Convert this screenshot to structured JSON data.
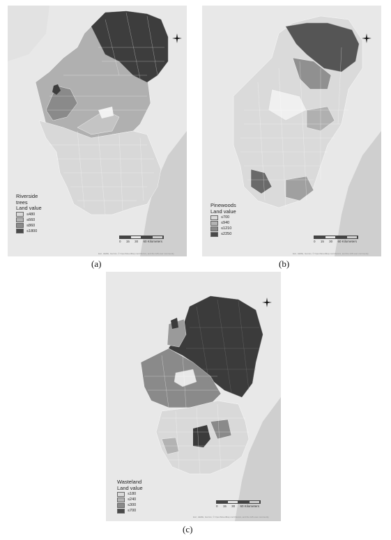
{
  "maps": [
    {
      "id": "a",
      "caption": "(a)",
      "legend_title_lines": [
        "Riverside",
        "trees",
        "Land value"
      ],
      "legend_items": [
        {
          "label": "≤480",
          "color": "#d9d9d9"
        },
        {
          "label": "≤660",
          "color": "#b3b3b3"
        },
        {
          "label": "≤860",
          "color": "#8a8a8a"
        },
        {
          "label": "≤1800",
          "color": "#4a4a4a"
        }
      ]
    },
    {
      "id": "b",
      "caption": "(b)",
      "legend_title_lines": [
        "Pinewoods",
        "Land value"
      ],
      "legend_items": [
        {
          "label": "≤700",
          "color": "#d9d9d9"
        },
        {
          "label": "≤940",
          "color": "#b3b3b3"
        },
        {
          "label": "≤1210",
          "color": "#8a8a8a"
        },
        {
          "label": "≤2250",
          "color": "#4a4a4a"
        }
      ]
    },
    {
      "id": "c",
      "caption": "(c)",
      "legend_title_lines": [
        "Wasteland",
        "Land value"
      ],
      "legend_items": [
        {
          "label": "≤180",
          "color": "#d9d9d9"
        },
        {
          "label": "≤240",
          "color": "#b3b3b3"
        },
        {
          "label": "≤300",
          "color": "#8a8a8a"
        },
        {
          "label": "≤700",
          "color": "#4a4a4a"
        }
      ]
    }
  ],
  "scale": {
    "ticks": [
      "0",
      "15",
      "30",
      "60 Kilometers"
    ]
  },
  "colors": {
    "background_map": "#e8e8e8",
    "sea": "#cfcfcf",
    "region_outline": "#ffffff"
  }
}
